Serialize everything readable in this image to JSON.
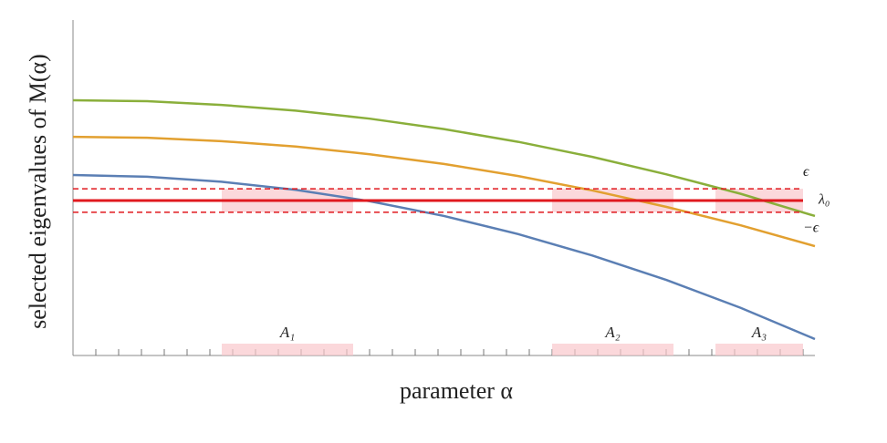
{
  "chart_data": {
    "type": "line",
    "x_label": "parameter α",
    "y_label": "selected eigenvalues of M(α)",
    "xlim": [
      0,
      1
    ],
    "ylim": [
      0,
      10
    ],
    "x": [
      0,
      0.1,
      0.2,
      0.3,
      0.4,
      0.5,
      0.6,
      0.7,
      0.8,
      0.9,
      1
    ],
    "series": [
      {
        "color": "#8aaf3b",
        "values": [
          7.61,
          7.58,
          7.47,
          7.3,
          7.06,
          6.75,
          6.37,
          5.92,
          5.4,
          4.82,
          4.16
        ]
      },
      {
        "color": "#e2a030",
        "values": [
          6.52,
          6.49,
          6.39,
          6.23,
          6.0,
          5.71,
          5.35,
          4.92,
          4.43,
          3.88,
          3.26
        ]
      },
      {
        "color": "#5b7fb4",
        "values": [
          5.38,
          5.33,
          5.18,
          4.94,
          4.6,
          4.16,
          3.62,
          2.98,
          2.25,
          1.42,
          0.49
        ]
      }
    ],
    "levels": [
      {
        "label": "ϵ",
        "value": 4.97,
        "dashed": true
      },
      {
        "label": "λ₀",
        "value": 4.62,
        "dashed": false
      },
      {
        "label": "−ϵ",
        "value": 4.27,
        "dashed": true
      }
    ],
    "level_color": "#e0191f",
    "regions": [
      {
        "label": "A₁",
        "from": 0.2005,
        "to": 0.3776
      },
      {
        "label": "A₂",
        "from": 0.6458,
        "to": 0.8094
      },
      {
        "label": "A₃",
        "from": 0.866,
        "to": 0.984
      }
    ],
    "region_color": "#f9c8cc"
  }
}
